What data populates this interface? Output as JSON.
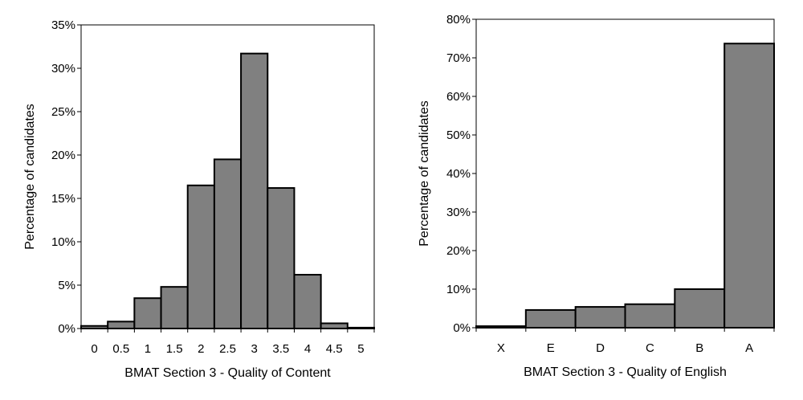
{
  "chart_data": [
    {
      "type": "bar",
      "xlabel": "BMAT Section 3 - Quality of Content",
      "ylabel": "Percentage of candidates",
      "categories": [
        "0",
        "0.5",
        "1",
        "1.5",
        "2",
        "2.5",
        "3",
        "3.5",
        "4",
        "4.5",
        "5"
      ],
      "values": [
        0.3,
        0.8,
        3.5,
        4.8,
        16.5,
        19.5,
        31.7,
        16.2,
        6.2,
        0.6,
        0.1
      ],
      "ylim": [
        0,
        35
      ],
      "yticks": [
        0,
        5,
        10,
        15,
        20,
        25,
        30,
        35
      ],
      "ytick_labels": [
        "0%",
        "5%",
        "10%",
        "15%",
        "20%",
        "25%",
        "30%",
        "35%"
      ],
      "grid": false,
      "bar_color": "#808080"
    },
    {
      "type": "bar",
      "xlabel": "BMAT Section 3 - Quality of English",
      "ylabel": "Percentage of candidates",
      "categories": [
        "X",
        "E",
        "D",
        "C",
        "B",
        "A"
      ],
      "values": [
        0.4,
        4.6,
        5.4,
        6.1,
        10.0,
        73.7
      ],
      "ylim": [
        0,
        80
      ],
      "yticks": [
        0,
        10,
        20,
        30,
        40,
        50,
        60,
        70,
        80
      ],
      "ytick_labels": [
        "0%",
        "10%",
        "20%",
        "30%",
        "40%",
        "50%",
        "60%",
        "70%",
        "80%"
      ],
      "grid": false,
      "bar_color": "#808080"
    }
  ]
}
